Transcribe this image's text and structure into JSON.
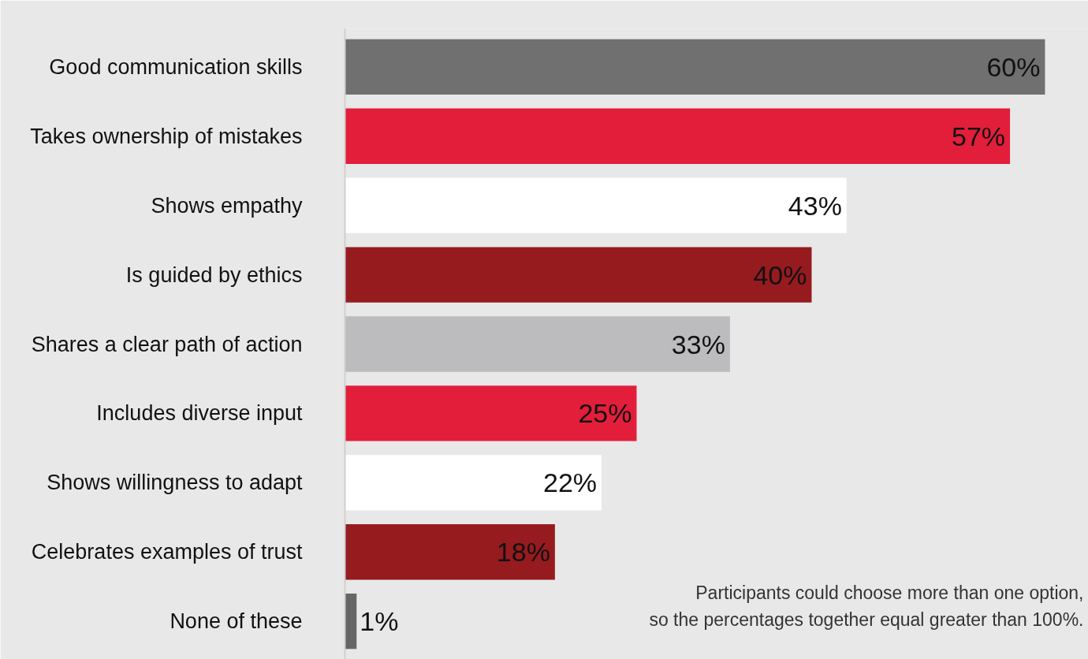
{
  "chart_data": {
    "type": "bar",
    "orientation": "horizontal",
    "categories": [
      "Good communication skills",
      "Takes ownership of mistakes",
      "Shows empathy",
      "Is guided by ethics",
      "Shares a clear path of action",
      "Includes diverse input",
      "Shows willingness to adapt",
      "Celebrates examples of trust",
      "None of these"
    ],
    "values": [
      60,
      57,
      43,
      40,
      33,
      25,
      22,
      18,
      1
    ],
    "colors": [
      "#707070",
      "#e31e3a",
      "#ffffff",
      "#961b1f",
      "#bcbcbe",
      "#e31e3a",
      "#ffffff",
      "#961b1f",
      "#666666"
    ],
    "value_labels": [
      "60%",
      "57%",
      "43%",
      "40%",
      "33%",
      "25%",
      "22%",
      "18%",
      "1%"
    ],
    "annotations": [
      "Participants could choose more than one option,\nso the percentages together equal greater than 100%."
    ]
  }
}
